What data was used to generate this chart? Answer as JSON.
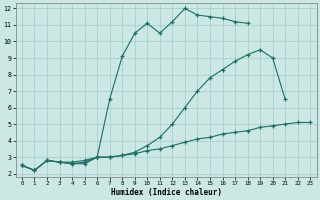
{
  "xlabel": "Humidex (Indice chaleur)",
  "bg_color": "#cce8e5",
  "grid_color": "#aacfcc",
  "line_color": "#1a6e65",
  "xlim": [
    -0.5,
    23.5
  ],
  "ylim": [
    1.8,
    12.3
  ],
  "xticks": [
    0,
    1,
    2,
    3,
    4,
    5,
    6,
    7,
    8,
    9,
    10,
    11,
    12,
    13,
    14,
    15,
    16,
    17,
    18,
    19,
    20,
    21,
    22,
    23
  ],
  "yticks": [
    2,
    3,
    4,
    5,
    6,
    7,
    8,
    9,
    10,
    11,
    12
  ],
  "curve1_x": [
    0,
    1,
    2,
    3,
    4,
    5,
    6,
    7,
    8,
    9,
    10,
    11,
    12,
    13,
    14,
    15,
    16,
    17,
    18
  ],
  "curve1_y": [
    2.5,
    2.2,
    2.8,
    2.7,
    2.6,
    2.6,
    3.0,
    6.5,
    9.1,
    10.5,
    11.1,
    10.5,
    11.2,
    12.0,
    11.6,
    11.5,
    11.4,
    11.2,
    11.1
  ],
  "curve2_x": [
    0,
    1,
    2,
    3,
    4,
    5,
    6,
    7,
    8,
    9,
    10,
    11,
    12,
    13,
    14,
    15,
    16,
    17,
    18,
    19,
    20,
    21,
    22,
    23
  ],
  "curve2_y": [
    2.5,
    2.2,
    2.8,
    2.7,
    2.6,
    2.7,
    3.0,
    3.0,
    3.1,
    3.3,
    3.7,
    4.2,
    5.0,
    6.0,
    7.0,
    7.8,
    8.3,
    8.8,
    9.2,
    9.5,
    9.0,
    6.5,
    null,
    null
  ],
  "curve3_x": [
    0,
    1,
    2,
    3,
    4,
    5,
    6,
    7,
    8,
    9,
    10,
    11,
    12,
    13,
    14,
    15,
    16,
    17,
    18,
    19,
    20,
    21,
    22,
    23
  ],
  "curve3_y": [
    2.5,
    2.2,
    2.8,
    2.7,
    2.7,
    2.8,
    3.0,
    3.0,
    3.1,
    3.2,
    3.4,
    3.5,
    3.7,
    3.9,
    4.1,
    4.2,
    4.4,
    4.5,
    4.6,
    4.8,
    4.9,
    5.0,
    5.1,
    5.1
  ]
}
